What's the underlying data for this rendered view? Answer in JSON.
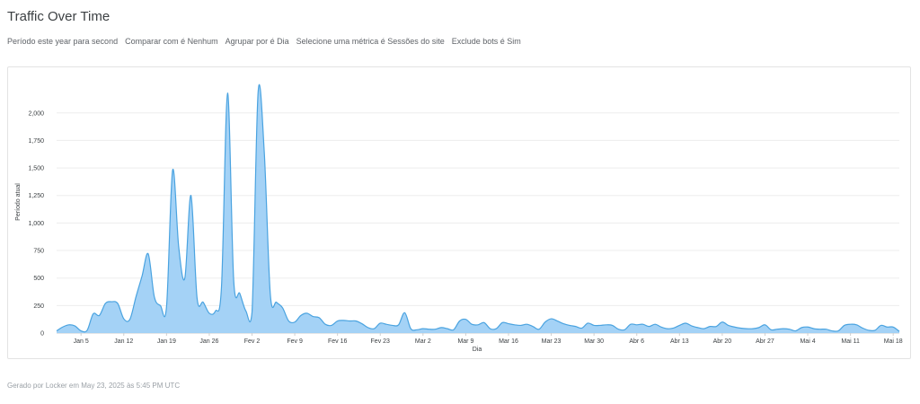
{
  "title": "Traffic Over Time",
  "filters": [
    "Período este year para second",
    "Comparar com é Nenhum",
    "Agrupar por é Dia",
    "Selecione uma métrica é Sessões do site",
    "Exclude bots é Sim"
  ],
  "footer": "Gerado por Locker em May 23, 2025 às 5:45 PM UTC",
  "colors": {
    "area_fill": "#9fd0f6",
    "line": "#4aa3e0"
  },
  "chart_data": {
    "type": "area",
    "xlabel": "Dia",
    "ylabel": "Período atual",
    "ylim": [
      0,
      2300
    ],
    "grid": true,
    "y_ticks": [
      0,
      250,
      500,
      750,
      1000,
      1250,
      1500,
      1750,
      2000
    ],
    "y_tick_labels": [
      "0",
      "250",
      "500",
      "750",
      "1,000",
      "1,250",
      "1,500",
      "1,750",
      "2,000"
    ],
    "x_tick_labels": [
      "Jan 5",
      "Jan 12",
      "Jan 19",
      "Jan 26",
      "Fev 2",
      "Fev 9",
      "Fev 16",
      "Fev 23",
      "Mar 2",
      "Mar 9",
      "Mar 16",
      "Mar 23",
      "Mar 30",
      "Abr 6",
      "Abr 13",
      "Abr 20",
      "Abr 27",
      "Mai 4",
      "Mai 11",
      "Mai 18"
    ],
    "x_tick_days": [
      4,
      11,
      18,
      25,
      32,
      39,
      46,
      53,
      60,
      67,
      74,
      81,
      88,
      95,
      102,
      109,
      116,
      123,
      130,
      137
    ],
    "start_label": "Jan 1",
    "values": [
      20,
      55,
      75,
      65,
      20,
      25,
      175,
      160,
      270,
      285,
      270,
      130,
      125,
      330,
      520,
      720,
      330,
      250,
      240,
      1480,
      780,
      500,
      1250,
      320,
      280,
      180,
      200,
      420,
      2180,
      480,
      360,
      200,
      190,
      2190,
      1650,
      350,
      280,
      230,
      110,
      100,
      160,
      180,
      150,
      140,
      80,
      70,
      110,
      115,
      110,
      110,
      85,
      50,
      40,
      90,
      80,
      70,
      75,
      185,
      40,
      30,
      40,
      35,
      35,
      50,
      40,
      30,
      110,
      125,
      80,
      75,
      95,
      40,
      40,
      95,
      85,
      75,
      70,
      80,
      60,
      35,
      100,
      130,
      110,
      85,
      70,
      60,
      45,
      90,
      70,
      70,
      75,
      70,
      35,
      30,
      80,
      75,
      80,
      60,
      80,
      55,
      40,
      45,
      70,
      90,
      65,
      50,
      40,
      60,
      60,
      100,
      70,
      55,
      45,
      40,
      40,
      50,
      75,
      30,
      35,
      40,
      35,
      20,
      50,
      55,
      40,
      35,
      35,
      20,
      20,
      70,
      80,
      75,
      45,
      25,
      25,
      70,
      55,
      55,
      15
    ]
  }
}
